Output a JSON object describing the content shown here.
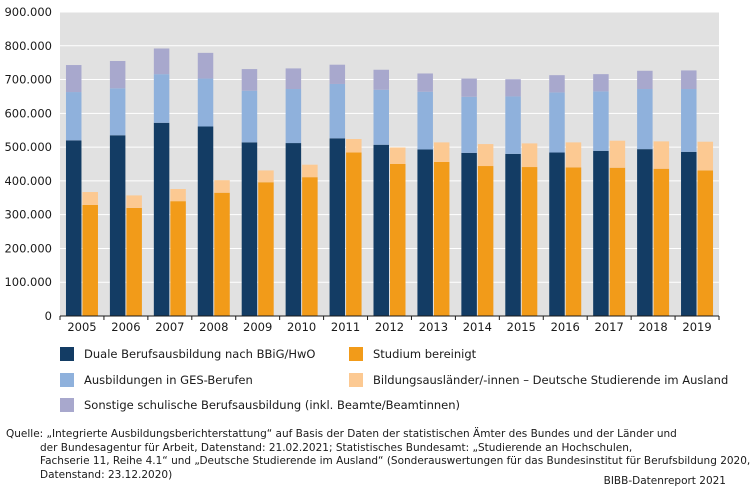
{
  "chart_data": {
    "type": "bar",
    "stacked_groups": true,
    "categories": [
      "2005",
      "2006",
      "2007",
      "2008",
      "2009",
      "2010",
      "2011",
      "2012",
      "2013",
      "2014",
      "2015",
      "2016",
      "2017",
      "2018",
      "2019"
    ],
    "ylim": [
      0,
      900000
    ],
    "yticks": [
      "0",
      "100.000",
      "200.000",
      "300.000",
      "400.000",
      "500.000",
      "600.000",
      "700.000",
      "800.000",
      "900.000"
    ],
    "ytick_values": [
      0,
      100000,
      200000,
      300000,
      400000,
      500000,
      600000,
      700000,
      800000,
      900000
    ],
    "grid": true,
    "series": [
      {
        "name": "Duale Berufsausbildung nach BBiG/HwO",
        "stack": "ausbildung",
        "color": "#133c64",
        "values": [
          520000,
          535000,
          572000,
          561000,
          514000,
          512000,
          526000,
          507000,
          493000,
          483000,
          480000,
          484000,
          489000,
          494000,
          486000
        ]
      },
      {
        "name": "Ausbildungen in GES-Berufen",
        "stack": "ausbildung",
        "color": "#8fb1dc",
        "values": [
          143000,
          139000,
          144000,
          142000,
          153000,
          160000,
          161000,
          163000,
          171000,
          166000,
          170000,
          178000,
          176000,
          178000,
          186000
        ]
      },
      {
        "name": "Sonstige schulische Berufsausbildung (inkl. Beamte/Beamtinnen)",
        "stack": "ausbildung",
        "color": "#a8a8cd",
        "values": [
          80000,
          81000,
          76000,
          76000,
          64000,
          61000,
          57000,
          59000,
          54000,
          54000,
          51000,
          51000,
          51000,
          54000,
          55000
        ]
      },
      {
        "name": "Studium bereinigt",
        "stack": "studium",
        "color": "#f29b19",
        "values": [
          329000,
          320000,
          340000,
          365000,
          396000,
          411000,
          484000,
          450000,
          456000,
          444000,
          441000,
          440000,
          439000,
          436000,
          431000
        ]
      },
      {
        "name": "Bildungsausländer/-innen – Deutsche Studierende im Ausland",
        "stack": "studium",
        "color": "#fcc992",
        "values": [
          38000,
          37000,
          36000,
          37000,
          35000,
          37000,
          40000,
          49000,
          58000,
          65000,
          70000,
          74000,
          80000,
          81000,
          85000
        ]
      }
    ]
  },
  "legend": {
    "items": [
      {
        "label": "Duale Berufsausbildung nach BBiG/HwO",
        "color": "#133c64"
      },
      {
        "label": "Studium bereinigt",
        "color": "#f29b19"
      },
      {
        "label": "Ausbildungen in GES-Berufen",
        "color": "#8fb1dc"
      },
      {
        "label": "Bildungsausländer/-innen – Deutsche Studierende im Ausland",
        "color": "#fcc992"
      },
      {
        "label": "Sonstige schulische Berufsausbildung (inkl. Beamte/Beamtinnen)",
        "color": "#a8a8cd"
      }
    ]
  },
  "source": {
    "line1": "Quelle: „Integrierte Ausbildungsberichterstattung“ auf Basis der Daten der statistischen Ämter des Bundes und der Länder und",
    "line2": "der Bundesagentur für Arbeit, Datenstand: 21.02.2021; Statistisches Bundesamt: „Studierende an Hochschulen,",
    "line3": "Fachserie 11, Reihe 4.1“ und „Deutsche Studierende im Ausland“ (Sonderauswertungen für das Bundesinstitut für Berufsbildung 2020,",
    "line4": "Datenstand: 23.12.2020)"
  },
  "credit": "BIBB-Datenreport 2021"
}
